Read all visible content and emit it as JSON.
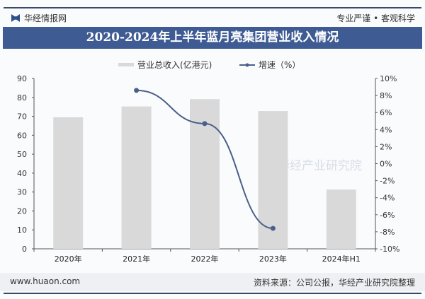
{
  "header": {
    "brand": "华经情报网",
    "slogan": "专业严谨 • 客观科学"
  },
  "footer": {
    "url": "www.huaon.com",
    "source": "资料来源：公司公报，华经产业研究院整理"
  },
  "watermark": "华经产业研究院",
  "chart_data": {
    "type": "bar+line",
    "title": "2020-2024年上半年蓝月亮集团营业收入情况",
    "categories": [
      "2020年",
      "2021年",
      "2022年",
      "2023年",
      "2024年H1"
    ],
    "series": [
      {
        "name": "营业总收入(亿港元)",
        "type": "bar",
        "axis": "left",
        "color": "#d9d9d9",
        "values": [
          69.5,
          75.2,
          79.1,
          72.8,
          31.3
        ]
      },
      {
        "name": "增速（%）",
        "type": "line",
        "axis": "right",
        "color": "#4a5f8a",
        "values": [
          null,
          8.6,
          4.7,
          -7.6,
          null
        ]
      }
    ],
    "left_axis": {
      "ylim": [
        0,
        90
      ],
      "ticks": [
        "0",
        "10",
        "20",
        "30",
        "40",
        "50",
        "60",
        "70",
        "80",
        "90"
      ]
    },
    "right_axis": {
      "ylim": [
        -10,
        10
      ],
      "ticks": [
        "-10%",
        "-8%",
        "-6%",
        "-4%",
        "-2%",
        "0%",
        "2%",
        "4%",
        "6%",
        "8%",
        "10%"
      ]
    },
    "legend": "top-center"
  }
}
